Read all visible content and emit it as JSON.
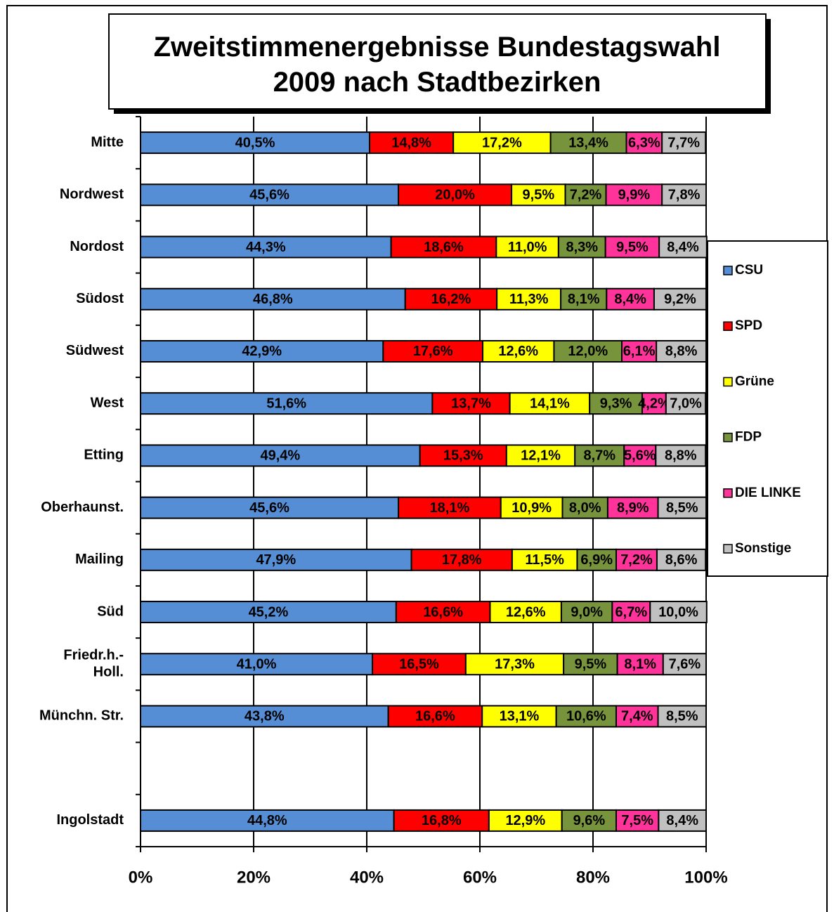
{
  "chart_data": {
    "type": "bar",
    "orientation": "horizontal",
    "stacked": true,
    "title": "Zweitstimmenergebnisse Bundestagswahl\n2009 nach Stadtbezirken",
    "categories": [
      "Mitte",
      "Nordwest",
      "Nordost",
      "Südost",
      "Südwest",
      "West",
      "Etting",
      "Oberhaunst.",
      "Mailing",
      "Süd",
      "Friedr.h.-\nHoll.",
      "Münchn. Str.",
      null,
      "Ingolstadt"
    ],
    "series": [
      {
        "name": "CSU",
        "color": "#558ed5",
        "values": [
          40.5,
          45.6,
          44.3,
          46.8,
          42.9,
          51.6,
          49.4,
          45.6,
          47.9,
          45.2,
          41.0,
          43.8,
          null,
          44.8
        ],
        "value_labels": [
          "40,5%",
          "45,6%",
          "44,3%",
          "46,8%",
          "42,9%",
          "51,6%",
          "49,4%",
          "45,6%",
          "47,9%",
          "45,2%",
          "41,0%",
          "43,8%",
          null,
          "44,8%"
        ]
      },
      {
        "name": "SPD",
        "color": "#ff0000",
        "values": [
          14.8,
          20.0,
          18.6,
          16.2,
          17.6,
          13.7,
          15.3,
          18.1,
          17.8,
          16.6,
          16.5,
          16.6,
          null,
          16.8
        ],
        "value_labels": [
          "14,8%",
          "20,0%",
          "18,6%",
          "16,2%",
          "17,6%",
          "13,7%",
          "15,3%",
          "18,1%",
          "17,8%",
          "16,6%",
          "16,5%",
          "16,6%",
          null,
          "16,8%"
        ]
      },
      {
        "name": "Grüne",
        "color": "#ffff00",
        "values": [
          17.2,
          9.5,
          11.0,
          11.3,
          12.6,
          14.1,
          12.1,
          10.9,
          11.5,
          12.6,
          17.3,
          13.1,
          null,
          12.9
        ],
        "value_labels": [
          "17,2%",
          "9,5%",
          "11,0%",
          "11,3%",
          "12,6%",
          "14,1%",
          "12,1%",
          "10,9%",
          "11,5%",
          "12,6%",
          "17,3%",
          "13,1%",
          null,
          "12,9%"
        ]
      },
      {
        "name": "FDP",
        "color": "#77933c",
        "values": [
          13.4,
          7.2,
          8.3,
          8.1,
          12.0,
          9.3,
          8.7,
          8.0,
          6.9,
          9.0,
          9.5,
          10.6,
          null,
          9.6
        ],
        "value_labels": [
          "13,4%",
          "7,2%",
          "8,3%",
          "8,1%",
          "12,0%",
          "9,3%",
          "8,7%",
          "8,0%",
          "6,9%",
          "9,0%",
          "9,5%",
          "10,6%",
          null,
          "9,6%"
        ]
      },
      {
        "name": "DIE LINKE",
        "color": "#ff3399",
        "values": [
          6.3,
          9.9,
          9.5,
          8.4,
          6.1,
          4.2,
          5.6,
          8.9,
          7.2,
          6.7,
          8.1,
          7.4,
          null,
          7.5
        ],
        "value_labels": [
          "6,3%",
          "9,9%",
          "9,5%",
          "8,4%",
          "6,1%",
          "4,2%",
          "5,6%",
          "8,9%",
          "7,2%",
          "6,7%",
          "8,1%",
          "7,4%",
          null,
          "7,5%"
        ]
      },
      {
        "name": "Sonstige",
        "color": "#c0c0c0",
        "values": [
          7.7,
          7.8,
          8.4,
          9.2,
          8.8,
          7.0,
          8.8,
          8.5,
          8.6,
          10.0,
          7.6,
          8.5,
          null,
          8.4
        ],
        "value_labels": [
          "7,7%",
          "7,8%",
          "8,4%",
          "9,2%",
          "8,8%",
          "7,0%",
          "8,8%",
          "8,5%",
          "8,6%",
          "10,0%",
          "7,6%",
          "8,5%",
          null,
          "8,4%"
        ]
      }
    ],
    "xlim": [
      0,
      100
    ],
    "xticks": [
      {
        "value": 0,
        "label": "0%"
      },
      {
        "value": 20,
        "label": "20%"
      },
      {
        "value": 40,
        "label": "40%"
      },
      {
        "value": 60,
        "label": "60%"
      },
      {
        "value": 80,
        "label": "80%"
      },
      {
        "value": 100,
        "label": "100%"
      }
    ],
    "grid": true,
    "legend": "right"
  }
}
